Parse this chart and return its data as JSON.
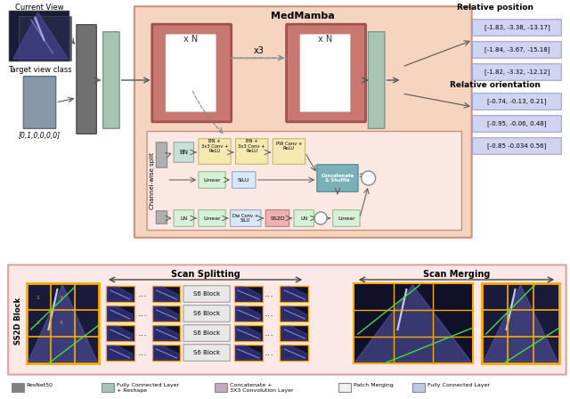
{
  "title": "MedMamba",
  "bg_color": "#ffffff",
  "medmamba_box_color": "#f5d5c8",
  "ss2d_outer_box_color": "#f5c0c0",
  "inner_box_color": "#fce8e0",
  "current_view_label": "Current View",
  "target_view_label": "Target view class",
  "target_view_value": "[0,1,0,0,0,0]",
  "rel_pos_label": "Relative position",
  "rel_pos_values": [
    "[-1.83, -3.38, -13.17]",
    "[-1.84, -3.67, -15.18]",
    "[-1.82, -3.32, -12.12]"
  ],
  "rel_ori_label": "Relative orientation",
  "rel_ori_values": [
    "[-0.74, -0.13, 0.21]",
    "[-0.95, -0.06, 0.48]",
    "[-0.85 -0.034 0.56]"
  ],
  "xN_label": "x N",
  "x3_label": "x3",
  "scan_split_label": "Scan Splitting",
  "scan_merge_label": "Scan Merging",
  "ss2d_block_label": "SS2D Block",
  "channel_wise_label": "Channel-wise split",
  "s6_blocks": [
    "S6 Block",
    "S6 Block",
    "S6 Block",
    "S6 Block"
  ],
  "legend_items": [
    {
      "label": "ResNet50",
      "color": "#808080"
    },
    {
      "label": "Fully Connected Layer\n+ Reshape",
      "color": "#a8c4b8"
    },
    {
      "label": "Concatenate +\n3X3 Convolution Layer",
      "color": "#c4a8c0"
    },
    {
      "label": "Patch Merging",
      "color": "#f0f0f0"
    },
    {
      "label": "Fully Connected Layer",
      "color": "#c0c8e8"
    }
  ]
}
